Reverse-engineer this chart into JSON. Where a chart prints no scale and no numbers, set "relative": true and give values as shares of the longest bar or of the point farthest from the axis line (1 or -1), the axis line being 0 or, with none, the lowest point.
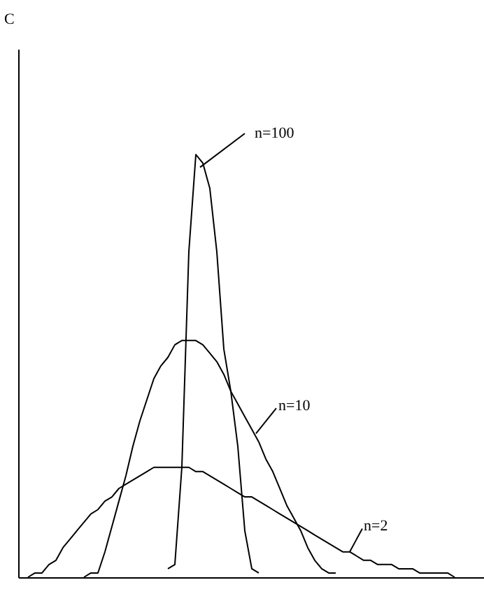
{
  "chart_data": {
    "type": "line",
    "relative": true,
    "annotations": [
      "C"
    ],
    "grid": false,
    "marker": "none",
    "line_style": "solid",
    "categories": [
      null,
      null,
      null,
      null,
      null,
      null,
      null,
      null,
      null,
      null,
      null,
      null,
      null,
      null,
      null,
      null,
      null,
      null,
      null,
      null,
      null,
      null,
      null,
      null,
      null,
      null,
      null,
      null,
      null,
      null,
      null,
      null,
      null,
      null,
      null,
      null,
      null,
      null,
      null,
      null,
      null,
      null,
      null,
      null,
      null,
      null,
      null,
      null,
      null,
      null,
      null,
      null,
      null,
      null,
      null,
      null,
      null,
      null,
      null,
      null,
      null,
      null,
      null
    ],
    "series": [
      {
        "name": "n=100",
        "color": "#000000",
        "values": [
          null,
          null,
          null,
          null,
          null,
          null,
          null,
          null,
          null,
          null,
          null,
          null,
          null,
          null,
          null,
          null,
          null,
          null,
          null,
          null,
          0.02,
          0.03,
          0.26,
          0.77,
          1,
          0.98,
          0.92,
          0.77,
          0.54,
          0.44,
          0.31,
          0.11,
          0.02,
          0.01,
          null,
          null,
          null,
          null,
          null,
          null,
          null,
          null,
          null,
          null,
          null,
          null,
          null,
          null,
          null,
          null,
          null,
          null,
          null,
          null,
          null,
          null,
          null,
          null,
          null,
          null,
          null,
          null,
          null
        ]
      },
      {
        "name": "n=10",
        "color": "#000000",
        "values": [
          null,
          null,
          null,
          null,
          null,
          null,
          null,
          null,
          0.0,
          0.01,
          0.01,
          0.06,
          0.12,
          0.18,
          0.24,
          0.31,
          0.37,
          0.42,
          0.47,
          0.5,
          0.52,
          0.55,
          0.56,
          0.56,
          0.56,
          0.55,
          0.53,
          0.51,
          0.48,
          0.44,
          0.41,
          0.38,
          0.35,
          0.32,
          0.28,
          0.25,
          0.21,
          0.17,
          0.14,
          0.11,
          0.07,
          0.04,
          0.02,
          0.01,
          0.01,
          null,
          null,
          null,
          null,
          null,
          null,
          null,
          null,
          null,
          null,
          null,
          null,
          null,
          null,
          null,
          null,
          null,
          null
        ]
      },
      {
        "name": "n=2",
        "color": "#000000",
        "values": [
          0.0,
          0.01,
          0.01,
          0.03,
          0.04,
          0.07,
          0.09,
          0.11,
          0.13,
          0.15,
          0.16,
          0.18,
          0.19,
          0.21,
          0.22,
          0.23,
          0.24,
          0.25,
          0.26,
          0.26,
          0.26,
          0.26,
          0.26,
          0.26,
          0.25,
          0.25,
          0.24,
          0.23,
          0.22,
          0.21,
          0.2,
          0.19,
          0.19,
          0.18,
          0.17,
          0.16,
          0.15,
          0.14,
          0.13,
          0.12,
          0.11,
          0.1,
          0.09,
          0.08,
          0.07,
          0.06,
          0.06,
          0.05,
          0.04,
          0.04,
          0.03,
          0.03,
          0.03,
          0.02,
          0.02,
          0.02,
          0.01,
          0.01,
          0.01,
          0.01,
          0.01,
          0.0,
          null
        ]
      }
    ]
  }
}
